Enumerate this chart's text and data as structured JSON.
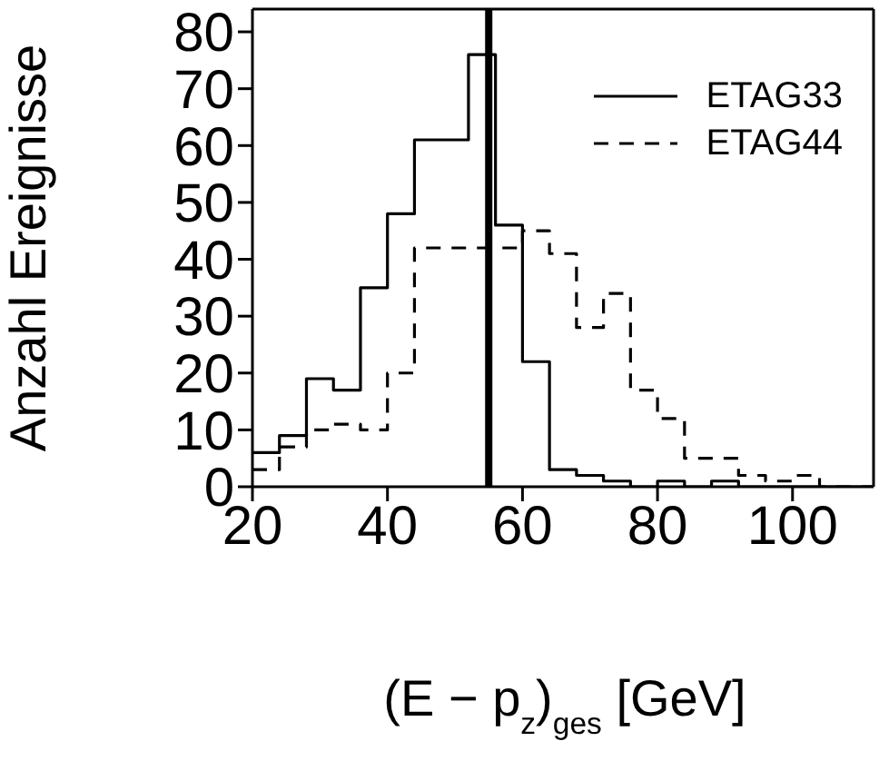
{
  "chart_data": {
    "type": "histogram",
    "xlabel": "(E − p$_{z}$)$_{ges}$ [GeV]",
    "ylabel": "Anzahl Ereignisse",
    "bins": [
      20,
      24,
      28,
      32,
      36,
      40,
      44,
      48,
      52,
      56,
      60,
      64,
      68,
      72,
      76,
      80,
      84,
      88,
      92,
      96,
      100,
      104,
      108,
      112
    ],
    "series": [
      {
        "name": "ETAG33",
        "color": "#000000",
        "line_style": "solid",
        "values": [
          6,
          9,
          19,
          17,
          35,
          48,
          61,
          61,
          76,
          46,
          22,
          3,
          2,
          1,
          0,
          1,
          0,
          1,
          0,
          0,
          0,
          0,
          0
        ]
      },
      {
        "name": "ETAG44",
        "color": "#000000",
        "line_style": "dashed",
        "values": [
          3,
          7,
          10,
          11,
          10,
          20,
          42,
          42,
          42,
          42,
          45,
          41,
          28,
          34,
          17,
          12,
          5,
          5,
          2,
          1,
          2,
          0,
          0
        ]
      }
    ],
    "xlim": [
      20,
      112
    ],
    "xticks": [
      20,
      40,
      60,
      80,
      100
    ],
    "ylim": [
      0,
      84
    ],
    "yticks": [
      0,
      10,
      20,
      30,
      40,
      50,
      60,
      70,
      80
    ],
    "ref_lines": [
      {
        "axis": "x",
        "value": 55,
        "color": "#000000"
      }
    ],
    "legend": "top right",
    "grid": false
  }
}
